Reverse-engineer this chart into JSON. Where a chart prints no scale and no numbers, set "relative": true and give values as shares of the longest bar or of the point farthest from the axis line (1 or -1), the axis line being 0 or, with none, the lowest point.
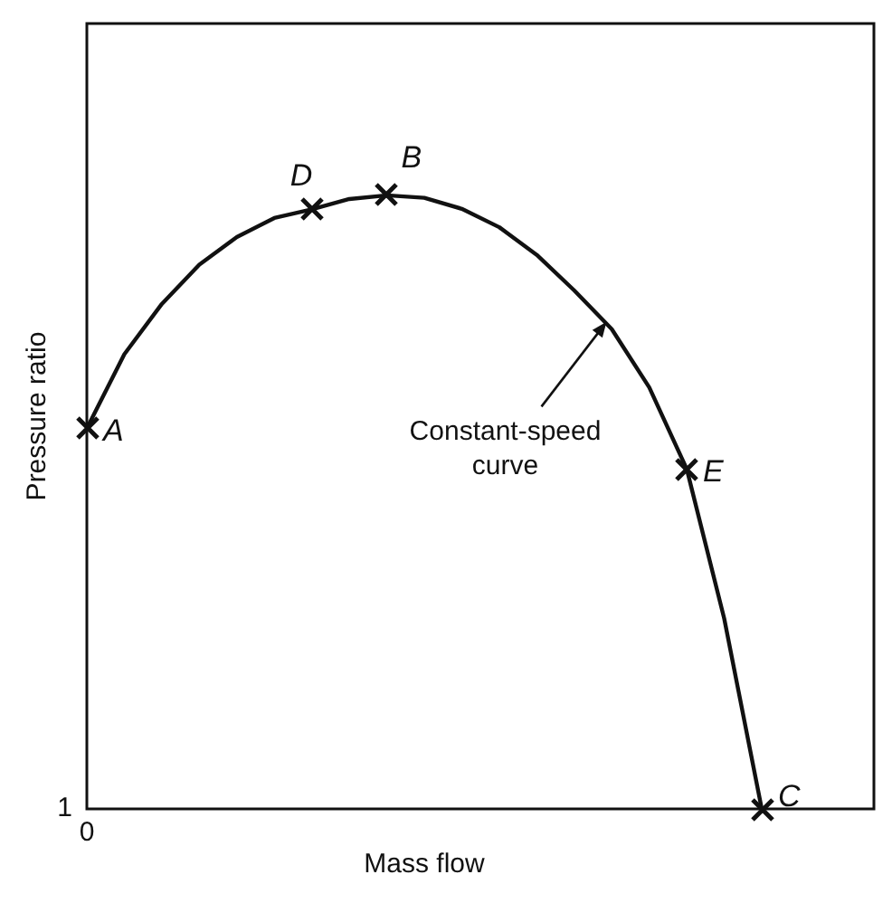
{
  "chart_data": {
    "type": "line",
    "relative": true,
    "xlabel": "Mass flow",
    "ylabel": "Pressure ratio",
    "grid": false,
    "legend": false,
    "categories": [
      null,
      null,
      null,
      null,
      null,
      null,
      null,
      null,
      null,
      null,
      null,
      null,
      null,
      null,
      null,
      null,
      null,
      null,
      null
    ],
    "series": [
      {
        "color": "#111111",
        "marker": "none",
        "line_style": "solid",
        "values": [
          0.62,
          0.741,
          0.823,
          0.887,
          0.932,
          0.963,
          0.977,
          0.994,
          1,
          0.996,
          0.978,
          0.948,
          0.903,
          0.845,
          0.782,
          0.687,
          0.554,
          0.31,
          0
        ]
      }
    ],
    "annotations": [
      "0",
      "1",
      "Constant-speed curve",
      "A",
      "D",
      "B",
      "E",
      "C"
    ]
  }
}
